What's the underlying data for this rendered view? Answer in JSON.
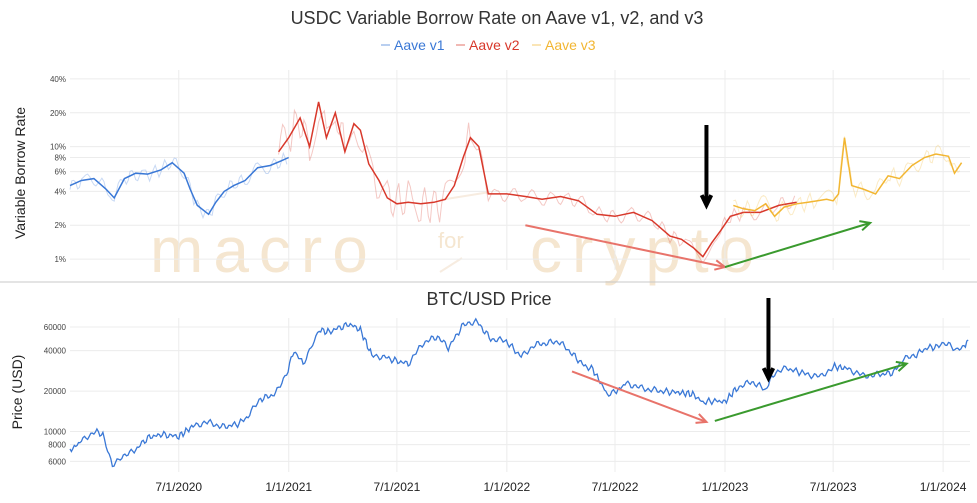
{
  "chart_data": [
    {
      "type": "line",
      "title": "USDC Variable Borrow Rate on Aave v1, v2, and v3",
      "ylabel": "Variable Borrow Rate",
      "yscale": "log",
      "y_ticks": [
        "1%",
        "2%",
        "4%",
        "6%",
        "8%",
        "10%",
        "20%",
        "40%"
      ],
      "legend_position": "top-center",
      "series": [
        {
          "name": "Aave v1",
          "color": "#3a78d6",
          "x": [
            "2020-01-01",
            "2020-01-20",
            "2020-02-10",
            "2020-03-01",
            "2020-03-15",
            "2020-04-01",
            "2020-04-20",
            "2020-05-10",
            "2020-06-01",
            "2020-06-20",
            "2020-07-10",
            "2020-07-20",
            "2020-08-01",
            "2020-08-20",
            "2020-09-01",
            "2020-09-15",
            "2020-10-01",
            "2020-10-20",
            "2020-11-10",
            "2020-12-01",
            "2020-12-20",
            "2021-01-01"
          ],
          "y": [
            4.5,
            5.0,
            5.2,
            4.2,
            3.5,
            5.2,
            5.8,
            5.7,
            6.2,
            7.2,
            5.8,
            4.2,
            3.0,
            2.5,
            3.2,
            4.0,
            4.5,
            5.0,
            6.5,
            6.8,
            7.5,
            8.0
          ]
        },
        {
          "name": "Aave v2",
          "color": "#d8382b",
          "x": [
            "2020-12-15",
            "2021-01-01",
            "2021-01-20",
            "2021-02-05",
            "2021-02-20",
            "2021-03-05",
            "2021-03-20",
            "2021-04-05",
            "2021-04-20",
            "2021-05-01",
            "2021-05-15",
            "2021-06-01",
            "2021-06-15",
            "2021-07-01",
            "2021-07-20",
            "2021-08-10",
            "2021-09-01",
            "2021-09-20",
            "2021-10-05",
            "2021-10-20",
            "2021-11-01",
            "2021-11-15",
            "2021-12-01",
            "2022-01-01",
            "2022-02-01",
            "2022-03-01",
            "2022-04-01",
            "2022-05-01",
            "2022-06-01",
            "2022-07-01",
            "2022-08-01",
            "2022-09-01",
            "2022-10-01",
            "2022-10-20",
            "2022-11-10",
            "2022-11-25",
            "2022-12-10",
            "2022-12-25",
            "2023-01-10",
            "2023-02-01",
            "2023-03-01",
            "2023-04-01",
            "2023-05-01"
          ],
          "y": [
            9,
            12,
            18,
            10,
            25,
            12,
            20,
            9,
            16,
            14,
            7,
            5,
            3.5,
            3.1,
            3.2,
            3.1,
            3.2,
            3.4,
            4.5,
            8,
            12,
            10,
            3.8,
            3.8,
            3.6,
            3.4,
            3.6,
            3.3,
            2.5,
            2.4,
            2.6,
            2.2,
            1.6,
            1.5,
            1.25,
            1.05,
            1.4,
            1.8,
            2.4,
            2.6,
            2.6,
            3.0,
            3.2
          ]
        },
        {
          "name": "Aave v3",
          "color": "#f2b632",
          "x": [
            "2023-01-15",
            "2023-02-01",
            "2023-02-20",
            "2023-03-10",
            "2023-03-25",
            "2023-04-10",
            "2023-05-01",
            "2023-05-20",
            "2023-06-05",
            "2023-06-20",
            "2023-07-01",
            "2023-07-10",
            "2023-07-20",
            "2023-08-01",
            "2023-08-20",
            "2023-09-10",
            "2023-10-01",
            "2023-10-20",
            "2023-11-10",
            "2023-12-01",
            "2023-12-20",
            "2024-01-10",
            "2024-01-20",
            "2024-02-01"
          ],
          "y": [
            3.0,
            2.8,
            2.7,
            3.1,
            2.4,
            2.9,
            3.1,
            3.2,
            3.3,
            3.4,
            3.3,
            3.8,
            12,
            4.5,
            4.2,
            3.8,
            5.5,
            5.2,
            6.8,
            8.0,
            8.6,
            8.2,
            5.8,
            7.2
          ]
        }
      ],
      "annotations": [
        {
          "type": "arrow",
          "color": "#000000",
          "direction": "down",
          "at_x": "2022-12-01"
        },
        {
          "type": "arrow",
          "color": "#e8736a",
          "from": {
            "x": "2022-02-01",
            "y": 2.0
          },
          "to": {
            "x": "2023-01-01",
            "y": 0.85
          }
        },
        {
          "type": "arrow",
          "color": "#3a9a2e",
          "from": {
            "x": "2023-01-01",
            "y": 0.85
          },
          "to": {
            "x": "2023-09-01",
            "y": 2.1
          }
        }
      ]
    },
    {
      "type": "line",
      "title": "BTC/USD Price",
      "ylabel": "Price (USD)",
      "yscale": "log",
      "y_ticks": [
        6000,
        8000,
        10000,
        20000,
        40000,
        60000
      ],
      "x_tick_labels": [
        "7/1/2020",
        "1/1/2021",
        "7/1/2021",
        "1/1/2022",
        "7/1/2022",
        "1/1/2023",
        "7/1/2023",
        "1/1/2024"
      ],
      "series": [
        {
          "color": "#3a78d6",
          "x": [
            "2020-01-01",
            "2020-01-20",
            "2020-02-10",
            "2020-02-25",
            "2020-03-12",
            "2020-03-25",
            "2020-04-15",
            "2020-05-10",
            "2020-06-01",
            "2020-07-01",
            "2020-07-25",
            "2020-08-15",
            "2020-09-15",
            "2020-10-10",
            "2020-10-25",
            "2020-11-15",
            "2020-12-10",
            "2020-12-31",
            "2021-01-10",
            "2021-01-25",
            "2021-02-10",
            "2021-02-21",
            "2021-03-10",
            "2021-03-20",
            "2021-04-14",
            "2021-05-01",
            "2021-05-20",
            "2021-06-10",
            "2021-06-25",
            "2021-07-20",
            "2021-08-15",
            "2021-09-07",
            "2021-09-25",
            "2021-10-20",
            "2021-11-10",
            "2021-12-05",
            "2021-12-31",
            "2022-01-25",
            "2022-02-15",
            "2022-03-28",
            "2022-04-15",
            "2022-05-10",
            "2022-05-25",
            "2022-06-18",
            "2022-07-01",
            "2022-07-20",
            "2022-08-15",
            "2022-09-15",
            "2022-10-15",
            "2022-11-08",
            "2022-11-25",
            "2022-12-15",
            "2023-01-01",
            "2023-01-20",
            "2023-02-15",
            "2023-03-10",
            "2023-03-25",
            "2023-04-15",
            "2023-05-15",
            "2023-06-10",
            "2023-07-01",
            "2023-07-25",
            "2023-08-20",
            "2023-09-15",
            "2023-10-10",
            "2023-10-25",
            "2023-11-15",
            "2023-12-05",
            "2023-12-25",
            "2024-01-10",
            "2024-01-23",
            "2024-02-05",
            "2024-02-12"
          ],
          "y": [
            7200,
            8500,
            10000,
            9600,
            5400,
            6500,
            7000,
            9000,
            9500,
            9200,
            11000,
            11800,
            10800,
            11500,
            13000,
            17500,
            19000,
            29000,
            40000,
            32000,
            46000,
            57000,
            55000,
            58000,
            63000,
            57000,
            37000,
            36000,
            34000,
            32000,
            46000,
            51000,
            42000,
            62000,
            67000,
            49000,
            47000,
            36000,
            44000,
            47000,
            40000,
            31000,
            29000,
            19000,
            19500,
            23000,
            21000,
            20000,
            19500,
            19000,
            16500,
            17000,
            16600,
            21000,
            23500,
            20500,
            27500,
            29500,
            27000,
            25500,
            30500,
            29500,
            26000,
            26500,
            27500,
            34000,
            37000,
            42000,
            43000,
            46500,
            39500,
            43000,
            48000
          ]
        }
      ],
      "annotations": [
        {
          "type": "arrow",
          "color": "#000000",
          "direction": "down",
          "at_x": "2022-12-01"
        },
        {
          "type": "arrow",
          "color": "#e8736a",
          "from": {
            "x": "2022-04-20",
            "y": 28000
          },
          "to": {
            "x": "2022-12-01",
            "y": 11800
          }
        },
        {
          "type": "arrow",
          "color": "#3a9a2e",
          "from": {
            "x": "2022-12-15",
            "y": 12000
          },
          "to": {
            "x": "2023-11-01",
            "y": 32000
          }
        }
      ]
    }
  ]
}
